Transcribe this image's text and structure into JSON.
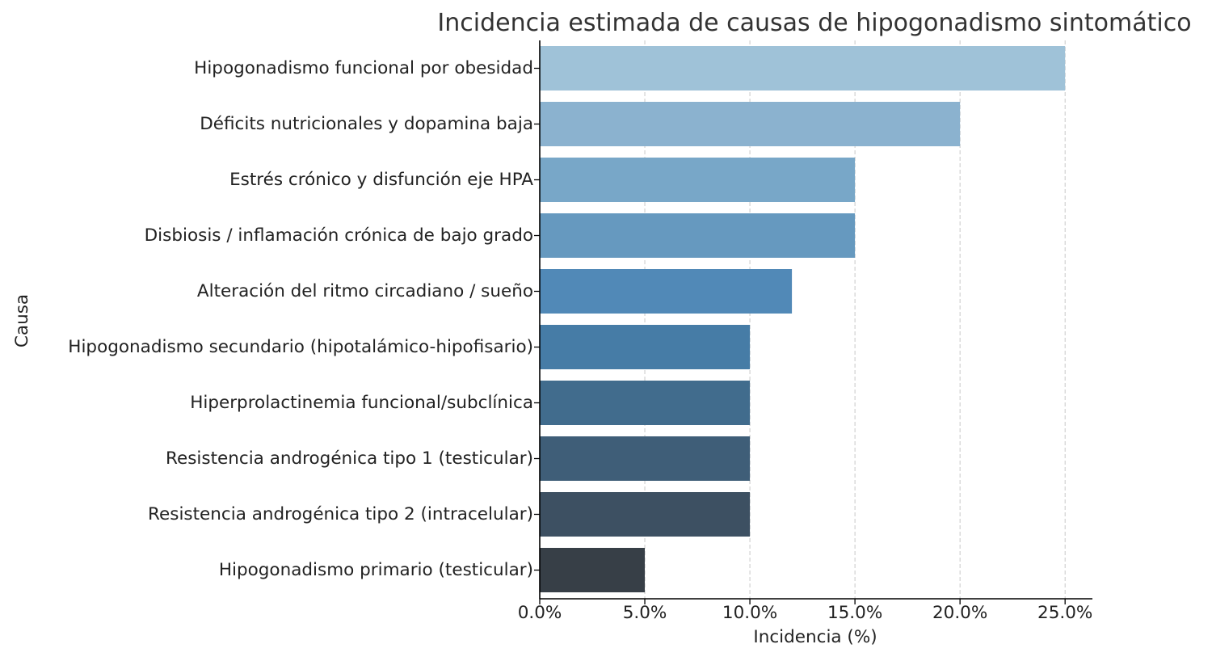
{
  "chart_data": {
    "type": "bar",
    "orientation": "horizontal",
    "title": "Incidencia estimada de causas de hipogonadismo sintomático",
    "xlabel": "Incidencia (%)",
    "ylabel": "Causa",
    "xlim": [
      0,
      26.3
    ],
    "x_ticks": [
      0,
      5,
      10,
      15,
      20,
      25
    ],
    "x_tick_labels": [
      "0.0%",
      "5.0%",
      "10.0%",
      "15.0%",
      "20.0%",
      "25.0%"
    ],
    "grid": "x-axis dashed",
    "categories": [
      "Hipogonadismo funcional por obesidad",
      "Déficits nutricionales y dopamina baja",
      "Estrés crónico y disfunción eje HPA",
      "Disbiosis / inflamación crónica de bajo grado",
      "Alteración del ritmo circadiano / sueño",
      "Hipogonadismo secundario (hipotalámico-hipofisario)",
      "Hiperprolactinemia funcional/subclínica",
      "Resistencia androgénica tipo 1 (testicular)",
      "Resistencia androgénica tipo 2 (intracelular)",
      "Hipogonadismo primario (testicular)"
    ],
    "values": [
      25,
      20,
      15,
      15,
      12,
      10,
      10,
      10,
      10,
      5
    ],
    "colors": [
      "#9fc2d8",
      "#8bb2cf",
      "#78a7c8",
      "#6699bf",
      "#5189b7",
      "#467ca6",
      "#416c8d",
      "#3f5e78",
      "#3d5062",
      "#373f47"
    ]
  }
}
